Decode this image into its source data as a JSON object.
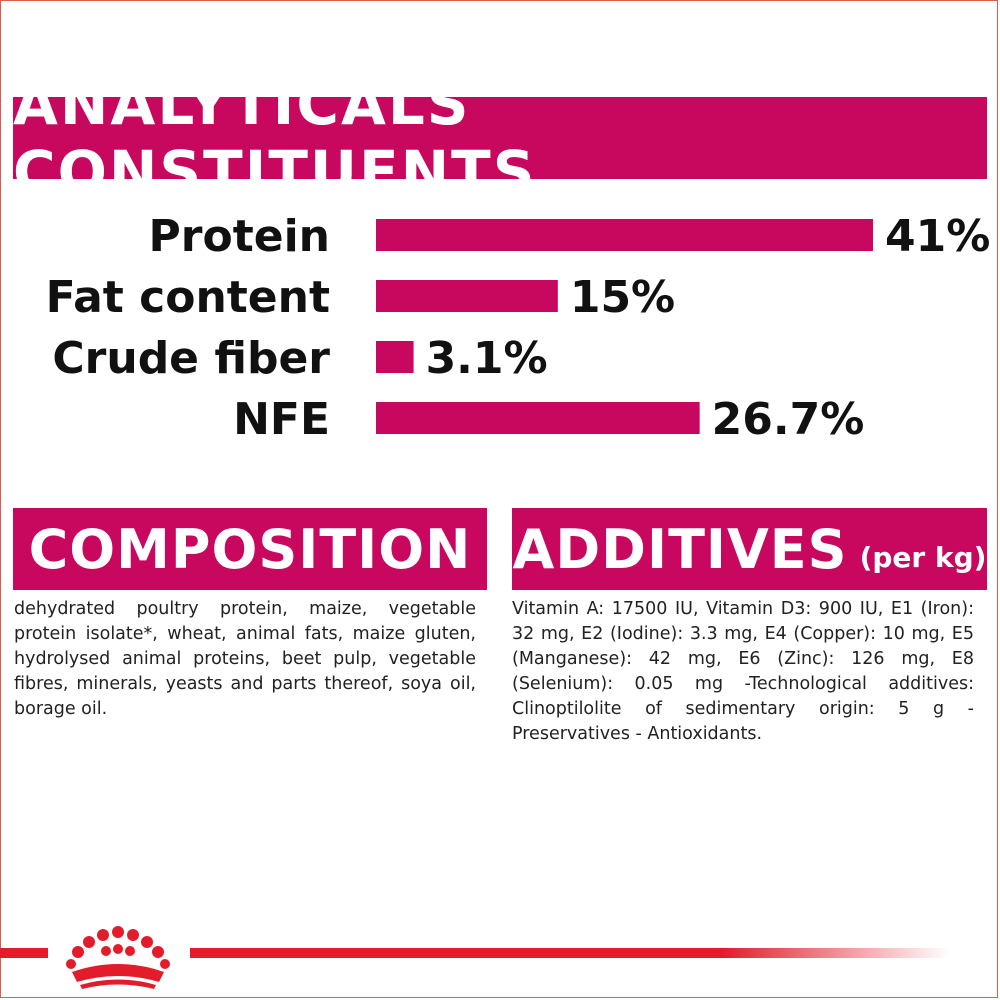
{
  "title": "ANALYTICALS CONSTITUENTS",
  "colors": {
    "accent": "#c8075e",
    "footer_red": "#e31c2c"
  },
  "chart_data": {
    "type": "bar",
    "orientation": "horizontal",
    "categories": [
      "Protein",
      "Fat content",
      "Crude fiber",
      "NFE"
    ],
    "values": [
      41,
      15,
      3.1,
      26.7
    ],
    "value_labels": [
      "41%",
      "15%",
      "3.1%",
      "26.7%"
    ],
    "unit": "%",
    "xlim": [
      0,
      41
    ],
    "grid": false,
    "legend": "none"
  },
  "composition": {
    "heading": "COMPOSITION",
    "text": "dehydrated poultry protein, maize, vegetable protein isolate*, wheat, animal fats, maize gluten, hydrolysed animal proteins, beet pulp, vegetable fibres, minerals, yeasts and parts thereof, soya oil, borage oil."
  },
  "additives": {
    "heading": "ADDITIVES",
    "subheading": "(per kg)",
    "text": "Vitamin A: 17500 IU, Vitamin D3: 900 IU, E1 (Iron): 32 mg, E2 (Iodine): 3.3 mg, E4 (Copper): 10 mg, E5 (Manganese): 42 mg, E6 (Zinc): 126 mg, E8 (Selenium): 0.05 mg -Technological additives: Clinoptilolite of sedimentary origin: 5 g - Preservatives - Antioxidants."
  },
  "footer": {
    "logo_icon": "crown-icon"
  }
}
